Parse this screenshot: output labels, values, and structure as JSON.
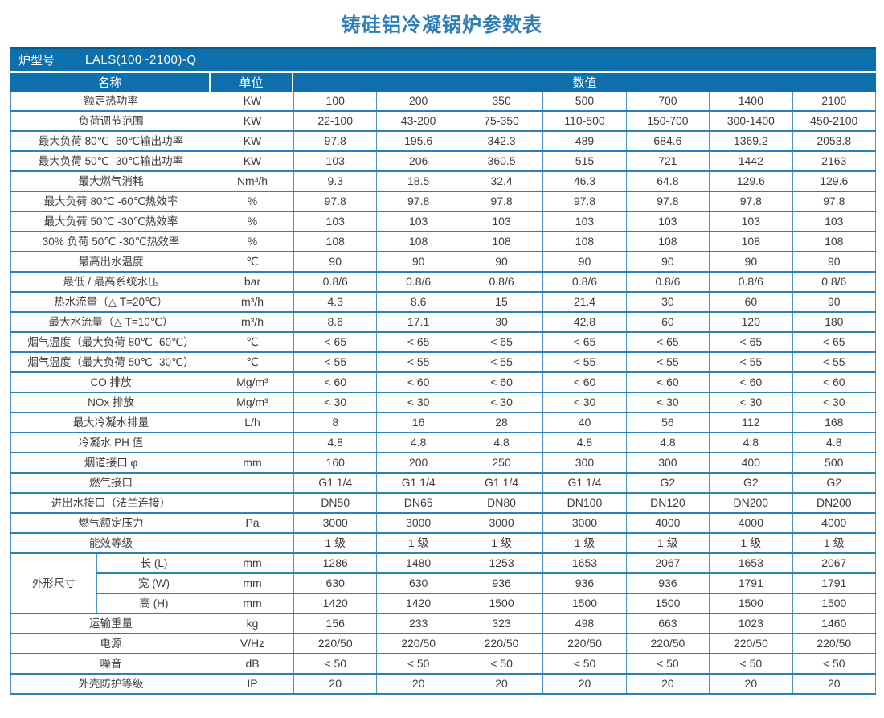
{
  "title": "铸硅铝冷凝锅炉参数表",
  "colors": {
    "header_blue": "#0d70ac",
    "header_blue_dark": "#0b5a8c",
    "border_blue": "#2f7fb8",
    "grid_line": "#4e95c5",
    "title_color": "#2e7db5",
    "text_color": "#3c3c3c"
  },
  "model": {
    "label": "炉型号",
    "value": "LALS(100~2100)-Q"
  },
  "columns": {
    "name": "名称",
    "unit": "单位",
    "value": "数值"
  },
  "table": {
    "dimension_group": "外形尺寸",
    "rows": [
      {
        "name": "额定热功率",
        "unit": "KW",
        "values": [
          "100",
          "200",
          "350",
          "500",
          "700",
          "1400",
          "2100"
        ]
      },
      {
        "name": "负荷调节范围",
        "unit": "KW",
        "values": [
          "22-100",
          "43-200",
          "75-350",
          "110-500",
          "150-700",
          "300-1400",
          "450-2100"
        ]
      },
      {
        "name": "最大负荷 80℃ -60℃输出功率",
        "unit": "KW",
        "values": [
          "97.8",
          "195.6",
          "342.3",
          "489",
          "684.6",
          "1369.2",
          "2053.8"
        ]
      },
      {
        "name": "最大负荷 50℃ -30℃输出功率",
        "unit": "KW",
        "values": [
          "103",
          "206",
          "360.5",
          "515",
          "721",
          "1442",
          "2163"
        ]
      },
      {
        "name": "最大燃气消耗",
        "unit": "Nm³/h",
        "values": [
          "9.3",
          "18.5",
          "32.4",
          "46.3",
          "64.8",
          "129.6",
          "129.6"
        ]
      },
      {
        "name": "最大负荷 80℃ -60℃热效率",
        "unit": "%",
        "values": [
          "97.8",
          "97.8",
          "97.8",
          "97.8",
          "97.8",
          "97.8",
          "97.8"
        ]
      },
      {
        "name": "最大负荷 50℃ -30℃热效率",
        "unit": "%",
        "values": [
          "103",
          "103",
          "103",
          "103",
          "103",
          "103",
          "103"
        ]
      },
      {
        "name": "30% 负荷 50℃ -30℃热效率",
        "unit": "%",
        "values": [
          "108",
          "108",
          "108",
          "108",
          "108",
          "108",
          "108"
        ]
      },
      {
        "name": "最高出水温度",
        "unit": "℃",
        "values": [
          "90",
          "90",
          "90",
          "90",
          "90",
          "90",
          "90"
        ]
      },
      {
        "name": "最低 / 最高系统水压",
        "unit": "bar",
        "values": [
          "0.8/6",
          "0.8/6",
          "0.8/6",
          "0.8/6",
          "0.8/6",
          "0.8/6",
          "0.8/6"
        ]
      },
      {
        "name": "热水流量（△ T=20℃）",
        "unit": "m³/h",
        "values": [
          "4.3",
          "8.6",
          "15",
          "21.4",
          "30",
          "60",
          "90"
        ]
      },
      {
        "name": "最大水流量（△ T=10℃）",
        "unit": "m³/h",
        "values": [
          "8.6",
          "17.1",
          "30",
          "42.8",
          "60",
          "120",
          "180"
        ]
      },
      {
        "name": "烟气温度（最大负荷 80℃ -60℃）",
        "unit": "℃",
        "values": [
          "< 65",
          "< 65",
          "< 65",
          "< 65",
          "< 65",
          "< 65",
          "< 65"
        ]
      },
      {
        "name": "烟气温度（最大负荷 50℃ -30℃）",
        "unit": "℃",
        "values": [
          "< 55",
          "< 55",
          "< 55",
          "< 55",
          "< 55",
          "< 55",
          "< 55"
        ]
      },
      {
        "name": "CO 排放",
        "unit": "Mg/m³",
        "values": [
          "< 60",
          "< 60",
          "< 60",
          "< 60",
          "< 60",
          "< 60",
          "< 60"
        ]
      },
      {
        "name": "NOx 排放",
        "unit": "Mg/m³",
        "values": [
          "< 30",
          "< 30",
          "< 30",
          "< 30",
          "< 30",
          "< 30",
          "< 30"
        ]
      },
      {
        "name": "最大冷凝水排量",
        "unit": "L/h",
        "values": [
          "8",
          "16",
          "28",
          "40",
          "56",
          "112",
          "168"
        ]
      },
      {
        "name": "冷凝水 PH 值",
        "unit": "",
        "values": [
          "4.8",
          "4.8",
          "4.8",
          "4.8",
          "4.8",
          "4.8",
          "4.8"
        ]
      },
      {
        "name": "烟道接口 φ",
        "unit": "mm",
        "values": [
          "160",
          "200",
          "250",
          "300",
          "300",
          "400",
          "500"
        ]
      },
      {
        "name": "燃气接口",
        "unit": "",
        "values": [
          "G1 1/4",
          "G1 1/4",
          "G1 1/4",
          "G1 1/4",
          "G2",
          "G2",
          "G2"
        ]
      },
      {
        "name": "进出水接口（法兰连接）",
        "unit": "",
        "values": [
          "DN50",
          "DN65",
          "DN80",
          "DN100",
          "DN120",
          "DN200",
          "DN200"
        ]
      },
      {
        "name": "燃气额定压力",
        "unit": "Pa",
        "values": [
          "3000",
          "3000",
          "3000",
          "3000",
          "4000",
          "4000",
          "4000"
        ]
      },
      {
        "name": "能效等级",
        "unit": "",
        "values": [
          "1 级",
          "1 级",
          "1 级",
          "1 级",
          "1 级",
          "1 级",
          "1 级"
        ]
      },
      {
        "sub": "长 (L)",
        "unit": "mm",
        "values": [
          "1286",
          "1480",
          "1253",
          "1653",
          "2067",
          "1653",
          "2067"
        ]
      },
      {
        "sub": "宽 (W)",
        "unit": "mm",
        "values": [
          "630",
          "630",
          "936",
          "936",
          "936",
          "1791",
          "1791"
        ]
      },
      {
        "sub": "高 (H)",
        "unit": "mm",
        "values": [
          "1420",
          "1420",
          "1500",
          "1500",
          "1500",
          "1500",
          "1500"
        ]
      },
      {
        "name": "运输重量",
        "unit": "kg",
        "values": [
          "156",
          "233",
          "323",
          "498",
          "663",
          "1023",
          "1460"
        ]
      },
      {
        "name": "电源",
        "unit": "V/Hz",
        "values": [
          "220/50",
          "220/50",
          "220/50",
          "220/50",
          "220/50",
          "220/50",
          "220/50"
        ]
      },
      {
        "name": "噪音",
        "unit": "dB",
        "values": [
          "< 50",
          "< 50",
          "< 50",
          "< 50",
          "< 50",
          "< 50",
          "< 50"
        ]
      },
      {
        "name": "外壳防护等级",
        "unit": "IP",
        "values": [
          "20",
          "20",
          "20",
          "20",
          "20",
          "20",
          "20"
        ]
      }
    ]
  }
}
